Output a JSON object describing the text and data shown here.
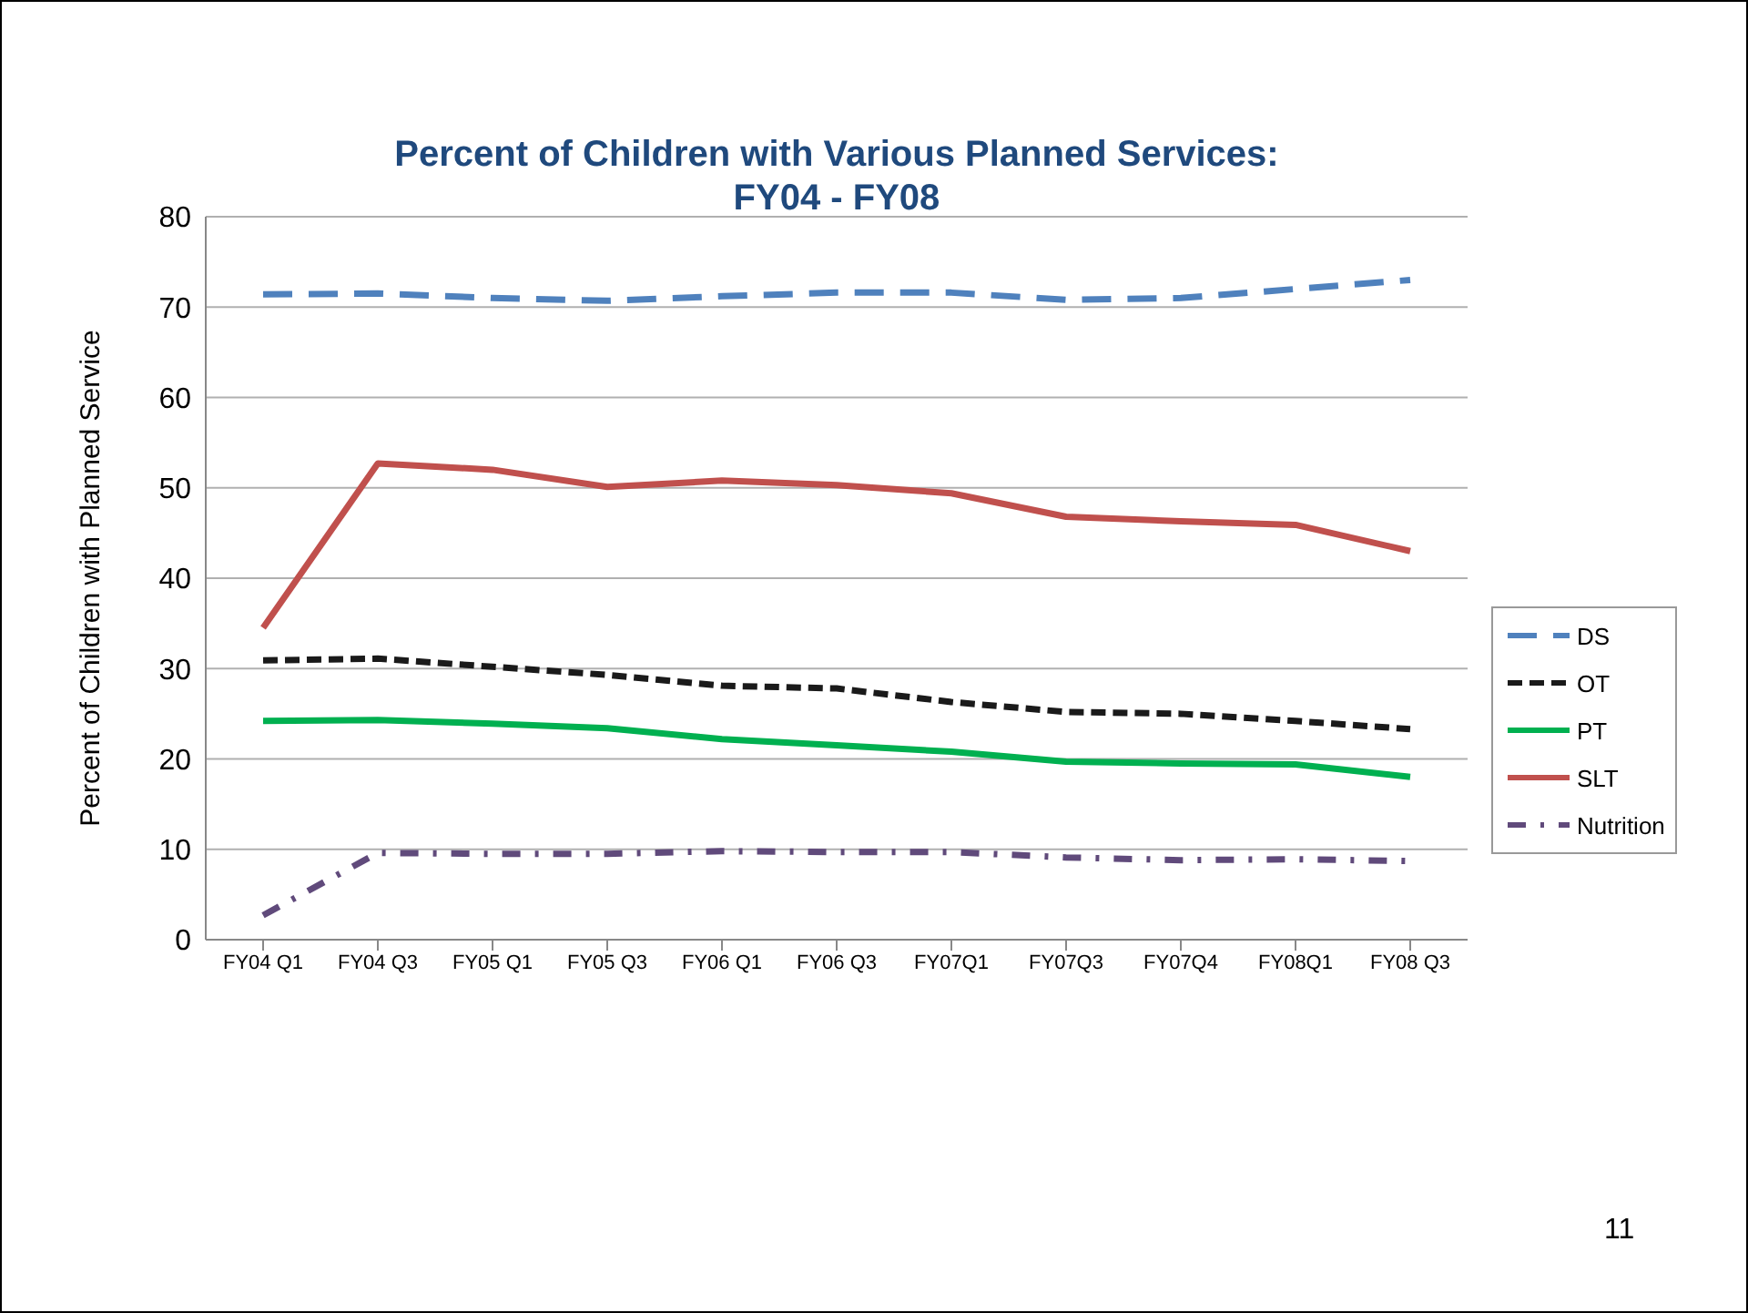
{
  "chart_data": {
    "type": "line",
    "title": "Percent of Children with Various Planned Services:\nFY04 - FY08",
    "ylabel": "Percent of Children with Planned Service",
    "categories": [
      "FY04 Q1",
      "FY04 Q3",
      "FY05 Q1",
      "FY05 Q3",
      "FY06 Q1",
      "FY06 Q3",
      "FY07Q1",
      "FY07Q3",
      "FY07Q4",
      "FY08Q1",
      "FY08 Q3"
    ],
    "series": [
      {
        "name": "DS",
        "color": "#4f81bd",
        "line_style": "dashed",
        "values": [
          71.4,
          71.5,
          71.0,
          70.7,
          71.2,
          71.6,
          71.6,
          70.8,
          71.0,
          72.0,
          73.0
        ]
      },
      {
        "name": "OT",
        "color": "#1a1a1a",
        "line_style": "dashed",
        "values": [
          30.9,
          31.1,
          30.2,
          29.3,
          28.1,
          27.8,
          26.3,
          25.2,
          25.0,
          24.2,
          23.3
        ]
      },
      {
        "name": "PT",
        "color": "#00b050",
        "line_style": "solid",
        "values": [
          24.2,
          24.3,
          23.9,
          23.4,
          22.2,
          21.5,
          20.8,
          19.7,
          19.5,
          19.4,
          18.0
        ]
      },
      {
        "name": "SLT",
        "color": "#c0504d",
        "line_style": "solid",
        "values": [
          34.5,
          52.7,
          52.0,
          50.1,
          50.8,
          50.3,
          49.4,
          46.8,
          46.3,
          45.9,
          43.0
        ]
      },
      {
        "name": "Nutrition",
        "color": "#604a7b",
        "line_style": "dotted",
        "values": [
          2.7,
          9.6,
          9.5,
          9.5,
          9.8,
          9.7,
          9.7,
          9.1,
          8.8,
          8.9,
          8.7
        ]
      }
    ],
    "ylim": [
      0,
      80
    ],
    "yticks": [
      0,
      10,
      20,
      30,
      40,
      50,
      60,
      70,
      80
    ],
    "grid": "y",
    "legend": "right",
    "marker": "none",
    "annotations": [
      "11"
    ]
  }
}
